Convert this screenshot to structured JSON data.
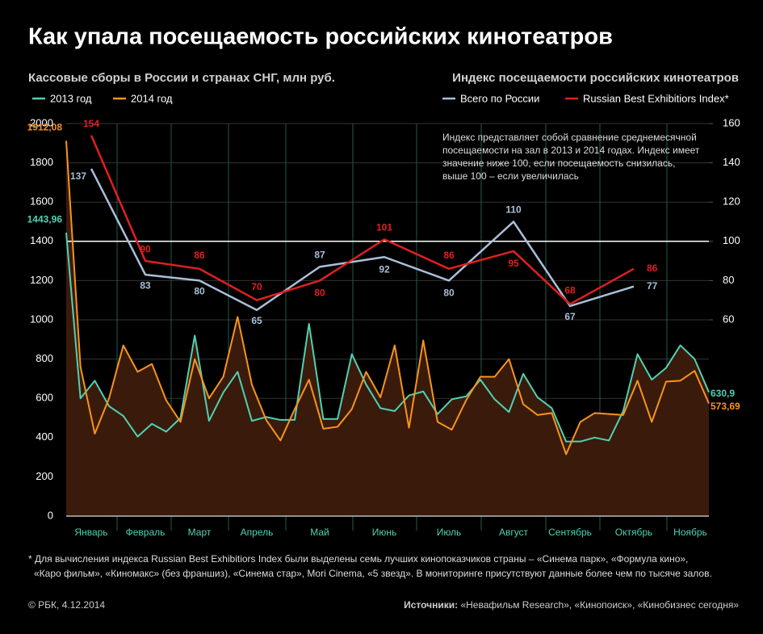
{
  "chart_data": {
    "type": "line",
    "title": "Как упала посещаемость российских кинотеатров",
    "subtitle": "Кассовые сборы в России и странах СНГ, млн руб.",
    "y2_title": "Индекс посещаемости российских кинотеатров",
    "annotation": [
      "Индекс представляет собой сравнение среднемесячной",
      "посещаемости на зал в 2013 и 2014 годах. Индекс имеет",
      "значение ниже 100, если посещаемость снизилась,",
      "выше 100 – если увеличилась"
    ],
    "footnote": [
      "* Для вычисления индекса Russian Best Exhibitiors Index были выделены семь лучших кинопоказчиков страны – «Синема парк», «Формула кино»,",
      "«Каро фильм», «Киномакс» (без франшиз), «Синема стар», Mori Cinema, «5 звезд». В мониторинге присутствуют данные более чем по тысяче залов."
    ],
    "copyright": "© РБК, 4.12.2014",
    "source_label": "Источники:",
    "sources": " «Невафильм Research», «Кинопоиск», «Кинобизнес сегодня»",
    "categories": [
      "Январь",
      "Февраль",
      "Март",
      "Апрель",
      "Май",
      "Июнь",
      "Июль",
      "Август",
      "Сентябрь",
      "Октябрь",
      "Ноябрь"
    ],
    "x": [
      0,
      1,
      2,
      3,
      4,
      5,
      6,
      7,
      8,
      9,
      10,
      11,
      12,
      13,
      14,
      15,
      16,
      17,
      18,
      19,
      20,
      21,
      22,
      23,
      24,
      25,
      26,
      27,
      28,
      29,
      30,
      31,
      32,
      33,
      34,
      35,
      36,
      37,
      38,
      39,
      40,
      41,
      42,
      43,
      44,
      45
    ],
    "xlim": [
      0,
      45
    ],
    "ylim": [
      0,
      2000
    ],
    "yticks": [
      0,
      200,
      400,
      600,
      800,
      1000,
      1200,
      1400,
      1600,
      1800,
      2000
    ],
    "y2lim": [
      -40,
      160
    ],
    "y2ticks": [
      60,
      80,
      100,
      120,
      140,
      160
    ],
    "y2_reference": 100,
    "area_color": "#3a1b0b",
    "grid": true,
    "series": [
      {
        "name": "2013 год",
        "color": "#4fd1b5",
        "values": [
          1443.96,
          600,
          690,
          560,
          510,
          405,
          470,
          430,
          500,
          920,
          485,
          630,
          735,
          485,
          505,
          490,
          490,
          980,
          495,
          495,
          825,
          670,
          550,
          535,
          615,
          635,
          520,
          595,
          610,
          695,
          595,
          530,
          725,
          605,
          550,
          380,
          380,
          400,
          385,
          535,
          825,
          695,
          755,
          870,
          800,
          630.9
        ],
        "value_labels": [
          "1443,96",
          null,
          null,
          null,
          null,
          null,
          null,
          null,
          null,
          null,
          null,
          null,
          null,
          null,
          null,
          null,
          null,
          null,
          null,
          null,
          null,
          null,
          null,
          null,
          null,
          null,
          null,
          null,
          null,
          null,
          null,
          null,
          null,
          null,
          null,
          null,
          null,
          null,
          null,
          null,
          null,
          null,
          null,
          null,
          null,
          "630,9"
        ]
      },
      {
        "name": "2014 год",
        "color": "#f7941d",
        "values": [
          1912.08,
          760,
          420,
          600,
          870,
          735,
          775,
          590,
          480,
          800,
          600,
          710,
          1015,
          670,
          490,
          385,
          545,
          695,
          445,
          455,
          545,
          735,
          605,
          870,
          450,
          895,
          480,
          440,
          590,
          710,
          710,
          800,
          570,
          515,
          525,
          315,
          480,
          525,
          520,
          515,
          690,
          480,
          685,
          690,
          740,
          573.69
        ],
        "value_labels": [
          "1912,08",
          null,
          null,
          null,
          null,
          null,
          null,
          null,
          null,
          null,
          null,
          null,
          null,
          null,
          null,
          null,
          null,
          null,
          null,
          null,
          null,
          null,
          null,
          null,
          null,
          null,
          null,
          null,
          null,
          null,
          null,
          null,
          null,
          null,
          null,
          null,
          null,
          null,
          null,
          null,
          null,
          null,
          null,
          null,
          null,
          "573,69"
        ]
      },
      {
        "name": "Всего по России",
        "color": "#a9bfd9",
        "axis": "y2",
        "values": [
          137,
          83,
          80,
          65,
          87,
          92,
          80,
          110,
          67,
          77,
          null
        ]
      },
      {
        "name": "Russian Best Exhibitiors Index*",
        "color": "#e0201f",
        "axis": "y2",
        "values": [
          154,
          90,
          86,
          70,
          80,
          101,
          86,
          95,
          68,
          86,
          null
        ]
      }
    ]
  }
}
